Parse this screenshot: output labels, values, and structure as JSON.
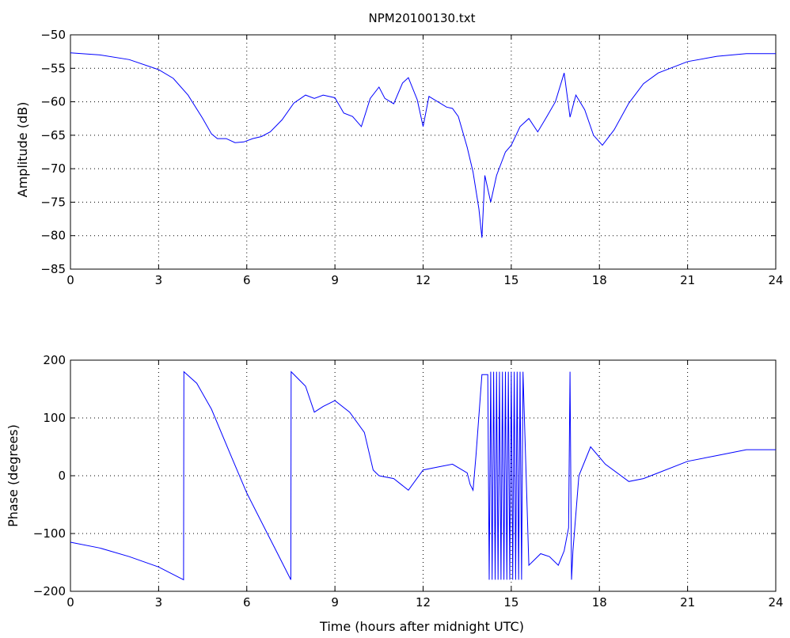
{
  "figure": {
    "title": "NPM20100130.txt"
  },
  "colors": {
    "series": "#0000ff",
    "axes": "#000000",
    "background": "#ffffff"
  },
  "chart_data": [
    {
      "type": "line",
      "title": "NPM20100130.txt",
      "xlabel": "",
      "ylabel": "Amplitude (dB)",
      "xlim": [
        0,
        24
      ],
      "ylim": [
        -85,
        -50
      ],
      "xticks": [
        0,
        3,
        6,
        9,
        12,
        15,
        18,
        21,
        24
      ],
      "yticks": [
        -50,
        -55,
        -60,
        -65,
        -70,
        -75,
        -80,
        -85
      ],
      "grid": true,
      "series": [
        {
          "x": [
            0,
            1,
            2,
            3,
            3.5,
            4,
            4.5,
            4.8,
            5,
            5.3,
            5.6,
            5.9,
            6.2,
            6.5,
            6.8,
            7.2,
            7.6,
            8.0,
            8.3,
            8.6,
            9.0,
            9.3,
            9.6,
            9.9,
            10.2,
            10.5,
            10.7,
            11.0,
            11.3,
            11.5,
            11.8,
            12.0,
            12.2,
            12.5,
            12.8,
            13.0,
            13.2,
            13.5,
            13.7,
            13.9,
            14.0,
            14.1,
            14.3,
            14.5,
            14.8,
            15.0,
            15.3,
            15.6,
            15.9,
            16.2,
            16.5,
            16.8,
            17.0,
            17.2,
            17.5,
            17.8,
            18.1,
            18.5,
            19.0,
            19.5,
            20,
            21,
            22,
            23,
            24
          ],
          "y": [
            -52.7,
            -53.0,
            -53.7,
            -55.2,
            -56.5,
            -59.0,
            -62.5,
            -64.8,
            -65.5,
            -65.5,
            -66.1,
            -66.0,
            -65.5,
            -65.2,
            -64.5,
            -62.7,
            -60.2,
            -59.0,
            -59.5,
            -59.0,
            -59.4,
            -61.7,
            -62.2,
            -63.7,
            -59.5,
            -57.8,
            -59.5,
            -60.3,
            -57.2,
            -56.4,
            -59.7,
            -63.7,
            -59.2,
            -60.0,
            -60.8,
            -61.0,
            -62.2,
            -66.8,
            -70.5,
            -76.0,
            -80.3,
            -71.0,
            -75.0,
            -71.0,
            -67.5,
            -66.5,
            -63.7,
            -62.5,
            -64.5,
            -62.3,
            -60.0,
            -55.7,
            -62.3,
            -59.0,
            -61.2,
            -65.0,
            -66.5,
            -64.2,
            -60.2,
            -57.3,
            -55.7,
            -54.0,
            -53.2,
            -52.8,
            -52.8
          ]
        }
      ]
    },
    {
      "type": "line",
      "title": "",
      "xlabel": "Time (hours after midnight UTC)",
      "ylabel": "Phase (degrees)",
      "xlim": [
        0,
        24
      ],
      "ylim": [
        -200,
        200
      ],
      "xticks": [
        0,
        3,
        6,
        9,
        12,
        15,
        18,
        21,
        24
      ],
      "yticks": [
        200,
        100,
        0,
        -100,
        -200
      ],
      "grid": true,
      "series": [
        {
          "x": [
            0,
            1,
            2,
            3,
            3.85,
            3.86,
            4.3,
            4.8,
            5.5,
            6.0,
            6.5,
            7.0,
            7.5,
            7.51,
            8.0,
            8.3,
            8.6,
            9.0,
            9.5,
            10.0,
            10.3,
            10.5,
            11.0,
            11.5,
            12.0,
            12.5,
            13.0,
            13.5,
            13.6,
            13.7,
            13.8,
            14.0,
            14.2,
            14.25,
            14.3,
            14.35,
            14.4,
            14.45,
            14.5,
            14.55,
            14.6,
            14.65,
            14.7,
            14.75,
            14.8,
            14.85,
            14.9,
            14.95,
            15.0,
            15.05,
            15.1,
            15.15,
            15.2,
            15.25,
            15.3,
            15.35,
            15.4,
            15.6,
            16.0,
            16.3,
            16.6,
            16.8,
            16.95,
            17.0,
            17.05,
            17.1,
            17.3,
            17.7,
            18.2,
            19.0,
            19.5,
            20,
            21,
            22,
            23,
            24
          ],
          "y": [
            -115,
            -125,
            -140,
            -158,
            -180,
            180,
            160,
            115,
            30,
            -30,
            -80,
            -130,
            -180,
            180,
            155,
            110,
            120,
            130,
            110,
            75,
            10,
            0,
            -5,
            -25,
            10,
            15,
            20,
            5,
            -15,
            -25,
            35,
            175,
            175,
            -180,
            180,
            -180,
            180,
            -180,
            180,
            -180,
            180,
            -180,
            180,
            -180,
            180,
            -180,
            180,
            -180,
            180,
            -180,
            180,
            -180,
            180,
            -180,
            180,
            -180,
            180,
            -155,
            -135,
            -140,
            -155,
            -130,
            -90,
            180,
            -180,
            -130,
            0,
            50,
            20,
            -10,
            -5,
            5,
            25,
            35,
            45,
            45
          ]
        }
      ]
    }
  ]
}
